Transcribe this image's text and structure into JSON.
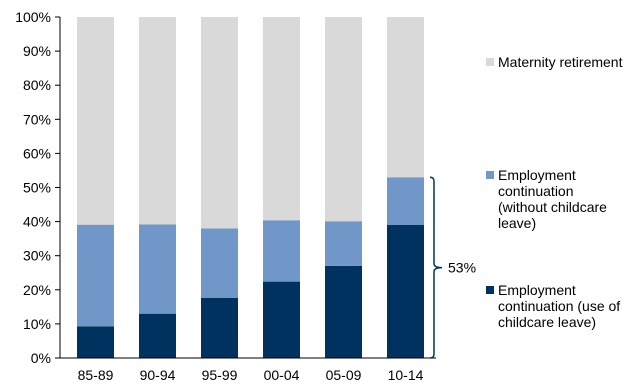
{
  "chart_data": {
    "type": "bar",
    "stacked": true,
    "percent": true,
    "title": "",
    "xlabel": "",
    "ylabel": "",
    "ylim": [
      0,
      100
    ],
    "yticks": [
      "0%",
      "10%",
      "20%",
      "30%",
      "40%",
      "50%",
      "60%",
      "70%",
      "80%",
      "90%",
      "100%"
    ],
    "categories": [
      "85-89",
      "90-94",
      "95-99",
      "00-04",
      "05-09",
      "10-14"
    ],
    "series": [
      {
        "name": "Employment continuation (use of childcare leave)",
        "legend_lines": [
          "Employment",
          "continuation (use of",
          "childcare leave)"
        ],
        "color": "#00325f",
        "values": [
          9.3,
          13,
          17.6,
          22.4,
          27,
          39
        ]
      },
      {
        "name": "Employment continuation (without childcare leave)",
        "legend_lines": [
          "Employment",
          "continuation",
          "(without childcare",
          "leave)"
        ],
        "color": "#7197c8",
        "values": [
          29.8,
          26.2,
          20.4,
          18.0,
          13.1,
          14.0
        ]
      },
      {
        "name": "Maternity retirement",
        "legend_lines": [
          "Maternity retirement"
        ],
        "color": "#d9d9d9",
        "values": [
          60.9,
          60.8,
          62.0,
          59.6,
          59.9,
          47.0
        ]
      }
    ],
    "annotation": {
      "text": "53%"
    },
    "grid": false,
    "legend_position": "right"
  }
}
